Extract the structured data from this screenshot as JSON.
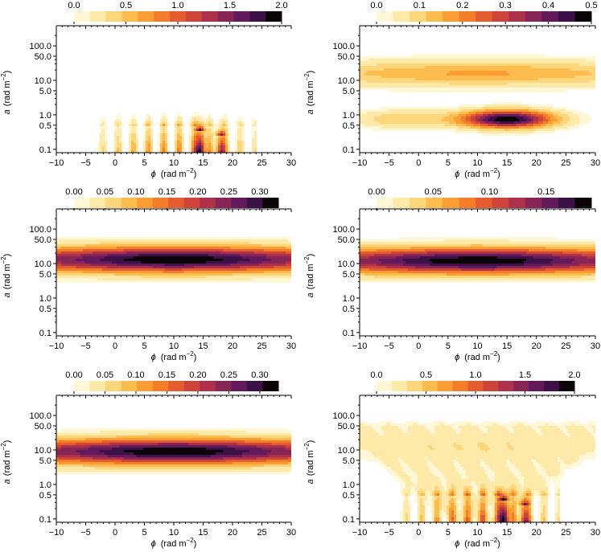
{
  "figure": {
    "x_axis_title": "(rad m",
    "x_axis_symbol": "ϕ",
    "y_axis_title": "(rad m",
    "y_axis_symbol": "a",
    "unit_exponent": "−2"
  },
  "colormap": [
    "#fff7d6",
    "#fde9a8",
    "#fdd57a",
    "#fcbc4e",
    "#fa9e33",
    "#f47d2a",
    "#e45c2f",
    "#cd4439",
    "#ad3148",
    "#882557",
    "#631a5c",
    "#3c1147",
    "#0b0408"
  ],
  "chart_data": [
    {
      "type": "heatmap",
      "panel": "top-left",
      "x": [
        -10,
        -5,
        0,
        5,
        10,
        15,
        20,
        25,
        30
      ],
      "x_tick_labels": [
        "−10",
        "−5",
        "0",
        "5",
        "10",
        "15",
        "20",
        "25",
        "30"
      ],
      "xlim": [
        -10,
        30
      ],
      "y_ticks": [
        0.1,
        0.5,
        1.0,
        5.0,
        10.0,
        50.0,
        100.0
      ],
      "y_tick_labels": [
        "0.1",
        "0.5",
        "1.0",
        "5.0",
        "10.0",
        "50.0",
        "100.0"
      ],
      "ylim": [
        0.08,
        250
      ],
      "y_scale": "log",
      "colorbar": {
        "min": 0,
        "max": 2.0,
        "ticks": [
          0,
          0.5,
          1.0,
          1.5,
          2.0
        ],
        "tick_labels": [
          "0.0",
          "0.5",
          "1.0",
          "1.5",
          "2.0"
        ],
        "levels": 13
      },
      "features": [
        {
          "kind": "fringes",
          "phi_range": [
            0,
            21
          ],
          "a_max": 0.45,
          "peak": 0.9
        },
        {
          "kind": "spike",
          "phi": 14.5,
          "a_max": 0.35,
          "peak": 2.0
        },
        {
          "kind": "spike",
          "phi": 18.0,
          "a_max": 0.25,
          "peak": 1.6
        }
      ]
    },
    {
      "type": "heatmap",
      "panel": "top-right",
      "x": [
        -10,
        -5,
        0,
        5,
        10,
        15,
        20,
        25,
        30
      ],
      "x_tick_labels": [
        "−10",
        "−5",
        "0",
        "5",
        "10",
        "15",
        "20",
        "25",
        "30"
      ],
      "xlim": [
        -10,
        30
      ],
      "y_ticks": [
        0.1,
        0.5,
        1.0,
        5.0,
        10.0,
        50.0,
        100.0
      ],
      "y_tick_labels": [
        "0.1",
        "0.5",
        "1.0",
        "5.0",
        "10.0",
        "50.0",
        "100.0"
      ],
      "ylim": [
        0.08,
        250
      ],
      "y_scale": "log",
      "colorbar": {
        "min": 0,
        "max": 0.5,
        "ticks": [
          0,
          0.1,
          0.2,
          0.3,
          0.4,
          0.5
        ],
        "tick_labels": [
          "0.0",
          "0.1",
          "0.2",
          "0.3",
          "0.4",
          "0.5"
        ],
        "levels": 13
      },
      "features": [
        {
          "kind": "band",
          "a_center": 16,
          "peak": 0.16
        },
        {
          "kind": "blob",
          "phi": 15,
          "a_center": 0.75,
          "peak": 0.5
        },
        {
          "kind": "blob",
          "phi": -3,
          "a_center": 0.75,
          "peak": 0.11
        }
      ]
    },
    {
      "type": "heatmap",
      "panel": "middle-left",
      "x": [
        -10,
        -5,
        0,
        5,
        10,
        15,
        20,
        25,
        30
      ],
      "x_tick_labels": [
        "−10",
        "−5",
        "0",
        "5",
        "10",
        "15",
        "20",
        "25",
        "30"
      ],
      "xlim": [
        -10,
        30
      ],
      "y_ticks": [
        0.1,
        0.5,
        1.0,
        5.0,
        10.0,
        50.0,
        100.0
      ],
      "y_tick_labels": [
        "0.1",
        "0.5",
        "1.0",
        "5.0",
        "10.0",
        "50.0",
        "100.0"
      ],
      "ylim": [
        0.08,
        250
      ],
      "y_scale": "log",
      "colorbar": {
        "min": 0,
        "max": 0.33,
        "ticks": [
          0,
          0.05,
          0.1,
          0.15,
          0.2,
          0.25,
          0.3
        ],
        "tick_labels": [
          "0.00",
          "0.05",
          "0.10",
          "0.15",
          "0.20",
          "0.25",
          "0.30"
        ],
        "levels": 13
      },
      "features": [
        {
          "kind": "band",
          "a_center": 13,
          "peak": 0.33,
          "phi_peak": 10
        }
      ]
    },
    {
      "type": "heatmap",
      "panel": "middle-right",
      "x": [
        -10,
        -5,
        0,
        5,
        10,
        15,
        20,
        25,
        30
      ],
      "x_tick_labels": [
        "−10",
        "−5",
        "0",
        "5",
        "10",
        "15",
        "20",
        "25",
        "30"
      ],
      "xlim": [
        -10,
        30
      ],
      "y_ticks": [
        0.1,
        0.5,
        1.0,
        5.0,
        10.0,
        50.0,
        100.0
      ],
      "y_tick_labels": [
        "0.1",
        "0.5",
        "1.0",
        "5.0",
        "10.0",
        "50.0",
        "100.0"
      ],
      "ylim": [
        0.08,
        250
      ],
      "y_scale": "log",
      "colorbar": {
        "min": 0,
        "max": 0.19,
        "ticks": [
          0,
          0.05,
          0.1,
          0.15
        ],
        "tick_labels": [
          "0.00",
          "0.05",
          "0.10",
          "0.15"
        ],
        "levels": 13
      },
      "features": [
        {
          "kind": "band",
          "a_center": 12,
          "peak": 0.19,
          "phi_peak": 10
        }
      ]
    },
    {
      "type": "heatmap",
      "panel": "bottom-left",
      "x": [
        -10,
        -5,
        0,
        5,
        10,
        15,
        20,
        25,
        30
      ],
      "x_tick_labels": [
        "−10",
        "−5",
        "0",
        "5",
        "10",
        "15",
        "20",
        "25",
        "30"
      ],
      "xlim": [
        -10,
        30
      ],
      "y_ticks": [
        0.1,
        0.5,
        1.0,
        5.0,
        10.0,
        50.0,
        100.0
      ],
      "y_tick_labels": [
        "0.1",
        "0.5",
        "1.0",
        "5.0",
        "10.0",
        "50.0",
        "100.0"
      ],
      "ylim": [
        0.08,
        250
      ],
      "y_scale": "log",
      "colorbar": {
        "min": 0,
        "max": 0.33,
        "ticks": [
          0,
          0.05,
          0.1,
          0.15,
          0.2,
          0.25,
          0.3
        ],
        "tick_labels": [
          "0.00",
          "0.05",
          "0.10",
          "0.15",
          "0.20",
          "0.25",
          "0.30"
        ],
        "levels": 13
      },
      "features": [
        {
          "kind": "band",
          "a_center": 9,
          "peak": 0.33,
          "phi_peak": 10
        }
      ]
    },
    {
      "type": "heatmap",
      "panel": "bottom-right",
      "x": [
        -10,
        -5,
        0,
        5,
        10,
        15,
        20,
        25,
        30
      ],
      "x_tick_labels": [
        "−10",
        "−5",
        "0",
        "5",
        "10",
        "15",
        "20",
        "25",
        "30"
      ],
      "xlim": [
        -10,
        30
      ],
      "y_ticks": [
        0.1,
        0.5,
        1.0,
        5.0,
        10.0,
        50.0,
        100.0
      ],
      "y_tick_labels": [
        "0.1",
        "0.5",
        "1.0",
        "5.0",
        "10.0",
        "50.0",
        "100.0"
      ],
      "ylim": [
        0.08,
        250
      ],
      "y_scale": "log",
      "colorbar": {
        "min": 0,
        "max": 2.0,
        "ticks": [
          0,
          0.5,
          1.0,
          1.5,
          2.0
        ],
        "tick_labels": [
          "0.0",
          "0.5",
          "1.0",
          "1.5",
          "2.0"
        ],
        "levels": 13
      },
      "features": [
        {
          "kind": "band",
          "a_center": 12,
          "peak": 0.12
        },
        {
          "kind": "funnel",
          "phi": 10,
          "peak": 0.2
        },
        {
          "kind": "fringes",
          "phi_range": [
            0,
            21
          ],
          "a_max": 0.5,
          "peak": 0.9
        },
        {
          "kind": "spike",
          "phi": 14.5,
          "a_max": 0.35,
          "peak": 2.0
        },
        {
          "kind": "spike",
          "phi": 18.0,
          "a_max": 0.25,
          "peak": 1.6
        }
      ]
    }
  ]
}
